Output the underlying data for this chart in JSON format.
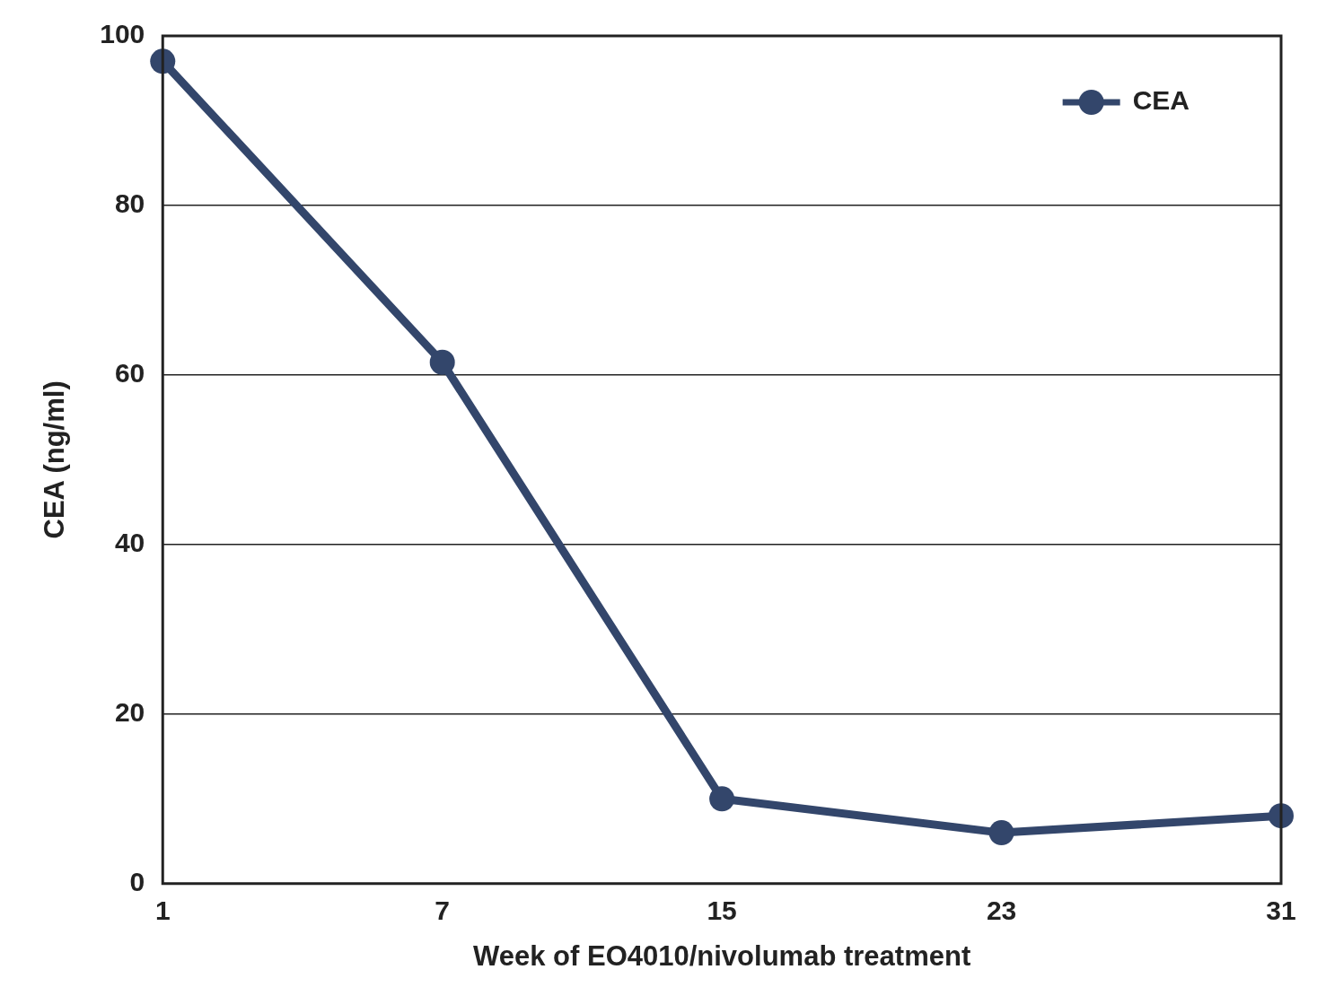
{
  "chart_data": {
    "type": "line",
    "xlabel": "Week of EO4010/nivolumab treatment",
    "ylabel": "CEA (ng/ml)",
    "categories": [
      "1",
      "7",
      "15",
      "23",
      "31"
    ],
    "series": [
      {
        "name": "CEA",
        "color": "#33466b",
        "values": [
          97,
          61.5,
          10,
          6,
          8
        ]
      }
    ],
    "ylim": [
      0,
      100
    ],
    "yticks": [
      0,
      20,
      40,
      60,
      80,
      100
    ],
    "grid": "y",
    "legend": "top right",
    "marker": "circle",
    "line_style": "solid"
  }
}
